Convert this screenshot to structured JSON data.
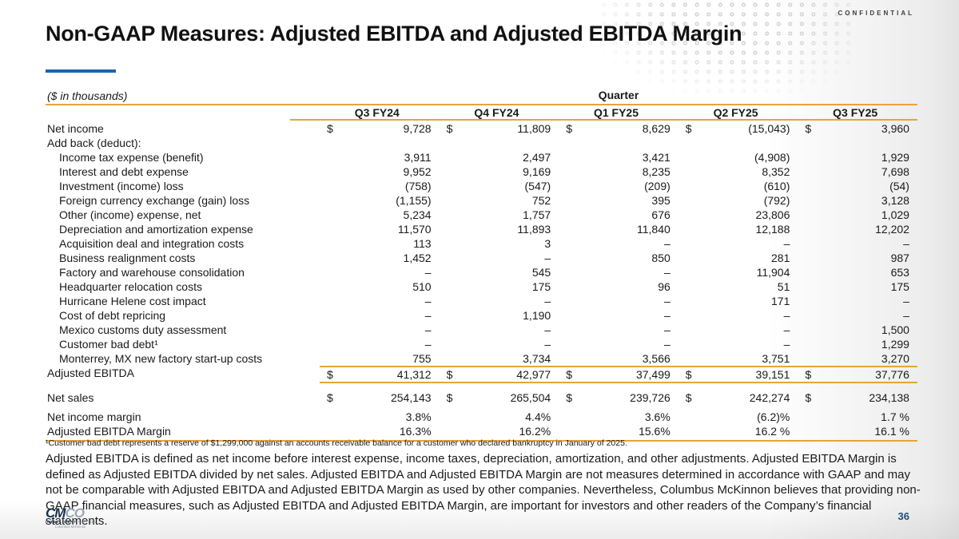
{
  "slide": {
    "title": "Non-GAAP Measures: Adjusted EBITDA and Adjusted EBITDA Margin",
    "confidential": "CONFIDENTIAL",
    "page_number": "36",
    "accent_blue": "#1C63AD",
    "accent_gold": "#E8A33C"
  },
  "table": {
    "units_note": "($ in thousands)",
    "group_header": "Quarter",
    "currency_symbol": "$",
    "columns": [
      "Q3 FY24",
      "Q4 FY24",
      "Q1 FY25",
      "Q2 FY25",
      "Q3 FY25"
    ],
    "rows": [
      {
        "label": "Net income",
        "indent": 0,
        "dollar": true,
        "values": [
          "9,728",
          "11,809",
          "8,629",
          "(15,043)",
          "3,960"
        ]
      },
      {
        "label": "Add back (deduct):",
        "indent": 0,
        "dollar": false,
        "values": [
          "",
          "",
          "",
          "",
          ""
        ]
      },
      {
        "label": "Income tax expense (benefit)",
        "indent": 1,
        "dollar": false,
        "values": [
          "3,911",
          "2,497",
          "3,421",
          "(4,908)",
          "1,929"
        ]
      },
      {
        "label": "Interest and debt expense",
        "indent": 1,
        "dollar": false,
        "values": [
          "9,952",
          "9,169",
          "8,235",
          "8,352",
          "7,698"
        ]
      },
      {
        "label": "Investment (income) loss",
        "indent": 1,
        "dollar": false,
        "values": [
          "(758)",
          "(547)",
          "(209)",
          "(610)",
          "(54)"
        ]
      },
      {
        "label": "Foreign currency exchange (gain) loss",
        "indent": 1,
        "dollar": false,
        "values": [
          "(1,155)",
          "752",
          "395",
          "(792)",
          "3,128"
        ]
      },
      {
        "label": "Other (income) expense, net",
        "indent": 1,
        "dollar": false,
        "values": [
          "5,234",
          "1,757",
          "676",
          "23,806",
          "1,029"
        ]
      },
      {
        "label": "Depreciation and amortization expense",
        "indent": 1,
        "dollar": false,
        "values": [
          "11,570",
          "11,893",
          "11,840",
          "12,188",
          "12,202"
        ]
      },
      {
        "label": "Acquisition deal and integration costs",
        "indent": 1,
        "dollar": false,
        "values": [
          "113",
          "3",
          "–",
          "–",
          "–"
        ]
      },
      {
        "label": "Business realignment costs",
        "indent": 1,
        "dollar": false,
        "values": [
          "1,452",
          "–",
          "850",
          "281",
          "987"
        ]
      },
      {
        "label": "Factory and warehouse consolidation",
        "indent": 1,
        "dollar": false,
        "values": [
          "–",
          "545",
          "–",
          "11,904",
          "653"
        ]
      },
      {
        "label": "Headquarter relocation costs",
        "indent": 1,
        "dollar": false,
        "values": [
          "510",
          "175",
          "96",
          "51",
          "175"
        ]
      },
      {
        "label": "Hurricane Helene cost impact",
        "indent": 1,
        "dollar": false,
        "values": [
          "–",
          "–",
          "–",
          "171",
          "–"
        ]
      },
      {
        "label": "Cost of debt repricing",
        "indent": 1,
        "dollar": false,
        "values": [
          "–",
          "1,190",
          "–",
          "–",
          "–"
        ]
      },
      {
        "label": "Mexico customs duty assessment",
        "indent": 1,
        "dollar": false,
        "values": [
          "–",
          "–",
          "–",
          "–",
          "1,500"
        ]
      },
      {
        "label": "Customer bad debt¹",
        "indent": 1,
        "dollar": false,
        "values": [
          "–",
          "–",
          "–",
          "–",
          "1,299"
        ]
      },
      {
        "label": "Monterrey, MX new factory start-up costs",
        "indent": 1,
        "dollar": false,
        "values": [
          "755",
          "3,734",
          "3,566",
          "3,751",
          "3,270"
        ]
      },
      {
        "label": "Adjusted EBITDA",
        "indent": 0,
        "dollar": true,
        "cls": "total",
        "values": [
          "41,312",
          "42,977",
          "37,499",
          "39,151",
          "37,776"
        ]
      },
      {
        "label": "Net sales",
        "indent": 0,
        "dollar": true,
        "cls": "gap-md",
        "values": [
          "254,143",
          "265,504",
          "239,726",
          "242,274",
          "234,138"
        ]
      },
      {
        "label": "Net income margin",
        "indent": 0,
        "dollar": false,
        "cls": "gap-sm",
        "values": [
          "3.8%",
          "4.4%",
          "3.6%",
          "(6.2)%",
          "1.7 %"
        ]
      },
      {
        "label": "Adjusted EBITDA Margin",
        "indent": 0,
        "dollar": false,
        "values": [
          "16.3%",
          "16.2%",
          "15.6%",
          "16.2 %",
          "16.1 %"
        ]
      }
    ]
  },
  "footnote": "¹Customer bad debt represents a reserve of $1,299,000 against an accounts receivable balance for a customer who declared bankruptcy in January of 2025.",
  "definition_paragraph": "Adjusted EBITDA is defined as net income before interest expense, income taxes, depreciation, amortization, and other adjustments.  Adjusted EBITDA Margin is defined as Adjusted EBITDA divided by net sales.  Adjusted EBITDA and Adjusted EBITDA Margin are not measures determined in accordance with GAAP and may not be comparable with Adjusted EBITDA and Adjusted EBITDA Margin as used by other companies.  Nevertheless, Columbus McKinnon believes that providing non-GAAP financial measures, such as Adjusted EBITDA and Adjusted EBITDA Margin, are important for investors and other readers of the Company’s financial statements.",
  "logo": {
    "mark_cm": "CM",
    "mark_co": "CO",
    "tagline_1": "INTELLIGENT",
    "tagline_2": "MOTION",
    "company": "Columbus McKinnon"
  }
}
